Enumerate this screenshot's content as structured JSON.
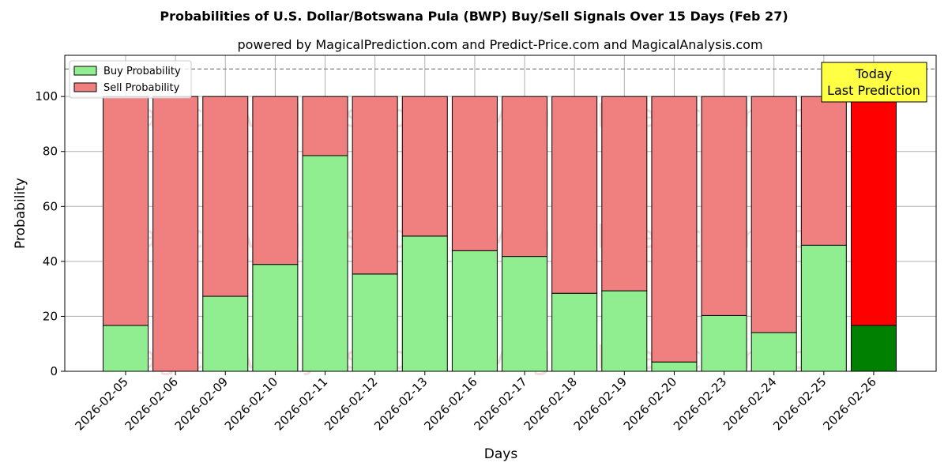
{
  "chart_data": {
    "type": "bar",
    "stacked": true,
    "title": "Probabilities of U.S. Dollar/Botswana Pula (BWP) Buy/Sell Signals Over 15 Days (Feb 27)",
    "subtitle": "powered by MagicalPrediction.com and Predict-Price.com and MagicalAnalysis.com",
    "xlabel": "Days",
    "ylabel": "Probability",
    "ylim": [
      0,
      115
    ],
    "yticks": [
      0,
      20,
      40,
      60,
      80,
      100
    ],
    "grid": true,
    "legend_position": "top-left",
    "reference_line": {
      "y": 110,
      "style": "dashed"
    },
    "categories": [
      "2026-02-05",
      "2026-02-06",
      "2026-02-09",
      "2026-02-10",
      "2026-02-11",
      "2026-02-12",
      "2026-02-13",
      "2026-02-16",
      "2026-02-17",
      "2026-02-18",
      "2026-02-19",
      "2026-02-20",
      "2026-02-23",
      "2026-02-24",
      "2026-02-25",
      "2026-02-26"
    ],
    "series": [
      {
        "name": "Buy Probability",
        "color": "#90ee90",
        "highlight_color": "#008000",
        "values": [
          16.7,
          0,
          27.3,
          38.9,
          78.5,
          35.4,
          49.2,
          43.9,
          41.8,
          28.4,
          29.3,
          3.4,
          20.3,
          14.1,
          45.9,
          16.7
        ]
      },
      {
        "name": "Sell Probability",
        "color": "#f08080",
        "highlight_color": "#ff0000",
        "values": [
          83.3,
          100,
          72.7,
          61.1,
          21.5,
          64.6,
          50.8,
          56.1,
          58.2,
          71.6,
          70.7,
          96.6,
          79.7,
          85.9,
          54.1,
          83.3
        ]
      }
    ],
    "highlight_index": 15,
    "annotation": {
      "line1": "Today",
      "line2": "Last Prediction"
    },
    "watermarks": [
      "MagicalAnalysis.com",
      "MagicalPrediction.com"
    ]
  }
}
